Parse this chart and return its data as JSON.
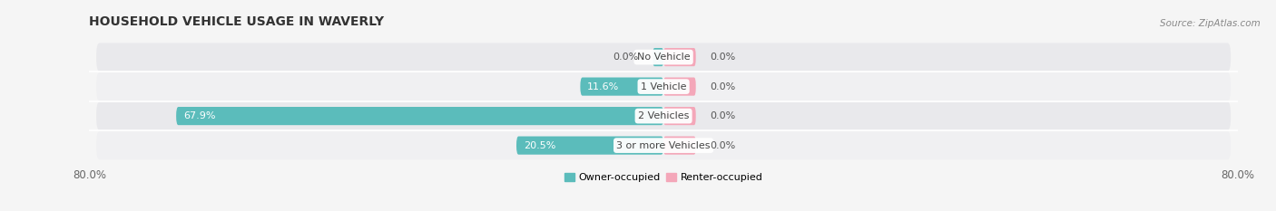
{
  "title": "HOUSEHOLD VEHICLE USAGE IN WAVERLY",
  "source_text": "Source: ZipAtlas.com",
  "categories": [
    "No Vehicle",
    "1 Vehicle",
    "2 Vehicles",
    "3 or more Vehicles"
  ],
  "owner_values": [
    0.0,
    11.6,
    67.9,
    20.5
  ],
  "renter_values": [
    0.0,
    0.0,
    0.0,
    0.0
  ],
  "owner_color": "#5bbcbb",
  "renter_color": "#f4a7b9",
  "xlim": [
    -80,
    80
  ],
  "title_fontsize": 10,
  "source_fontsize": 7.5,
  "label_fontsize": 8,
  "category_fontsize": 8,
  "legend_fontsize": 8,
  "bar_height": 0.62,
  "background_color": "#f5f5f5",
  "row_bg_light": "#f0f0f2",
  "row_bg_dark": "#e9e9ec"
}
